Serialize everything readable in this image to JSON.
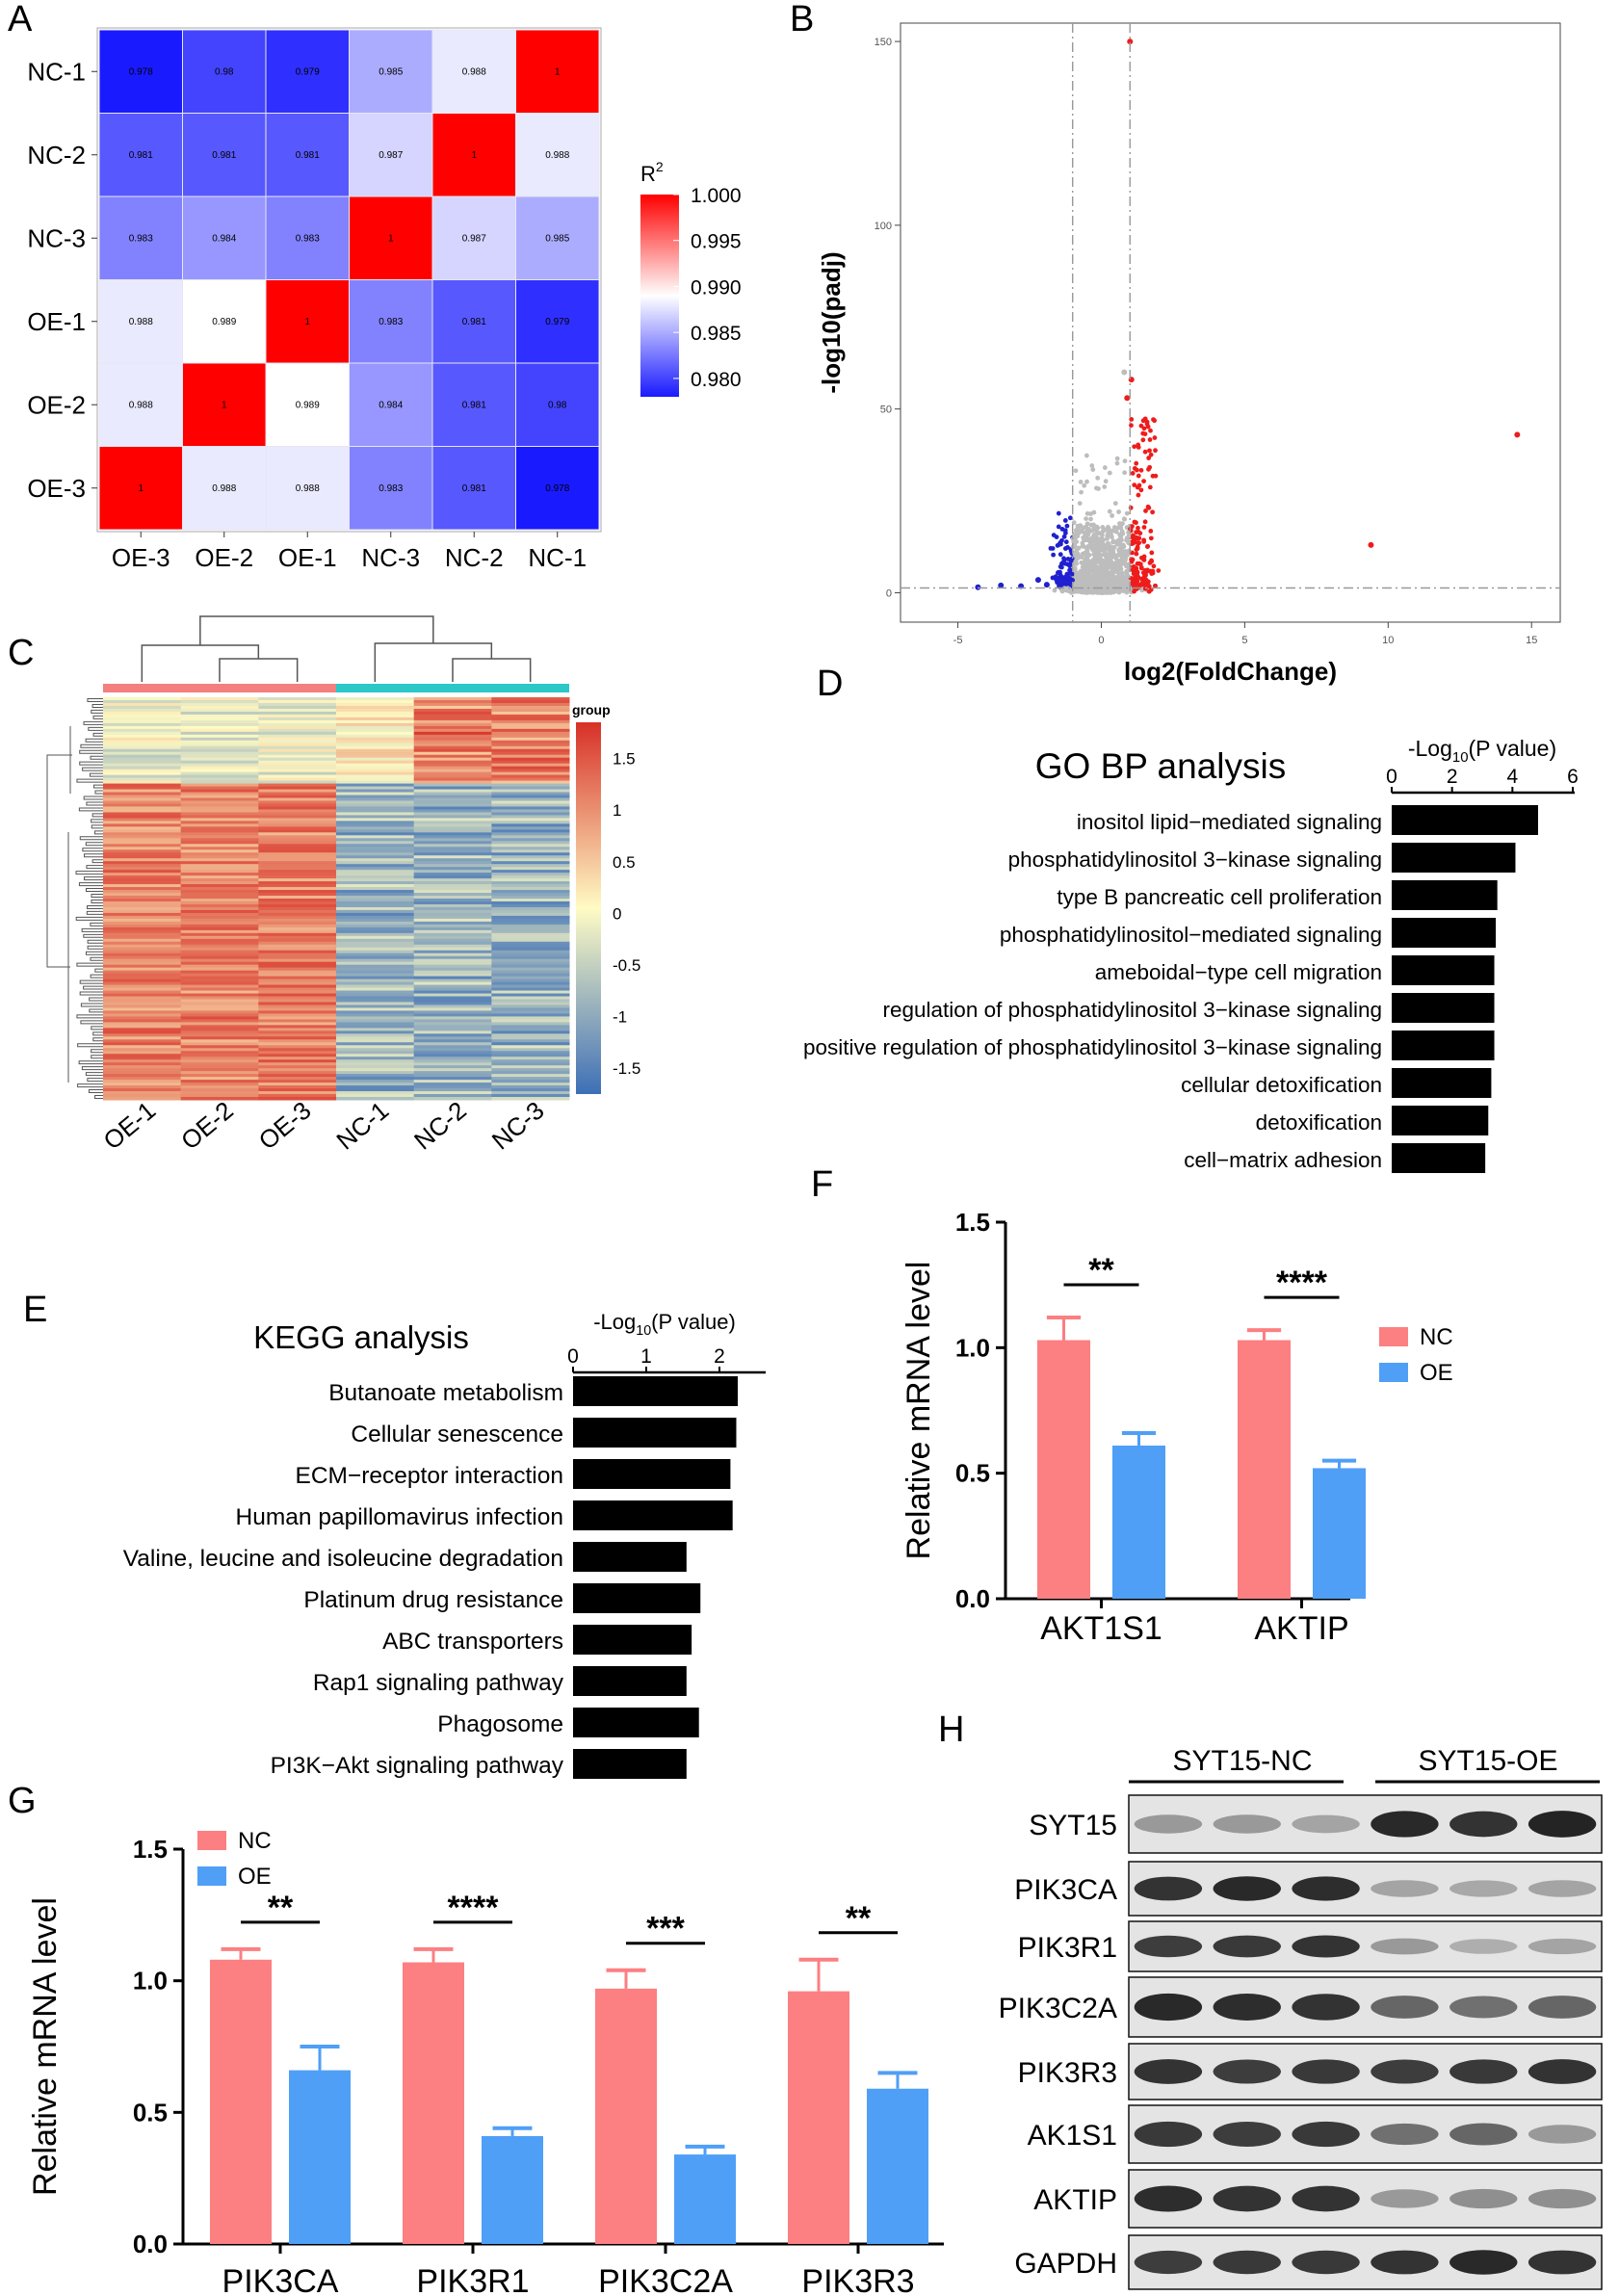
{
  "panel_labels": [
    "A",
    "B",
    "C",
    "D",
    "E",
    "F",
    "G",
    "H"
  ],
  "chart_data": [
    {
      "id": "A",
      "type": "heatmap",
      "title": "",
      "rows": [
        "NC-1",
        "NC-2",
        "NC-3",
        "OE-1",
        "OE-2",
        "OE-3"
      ],
      "cols": [
        "OE-3",
        "OE-2",
        "OE-1",
        "NC-3",
        "NC-2",
        "NC-1"
      ],
      "values": [
        [
          0.978,
          0.98,
          0.979,
          0.985,
          0.988,
          1
        ],
        [
          0.981,
          0.981,
          0.981,
          0.987,
          1,
          0.988
        ],
        [
          0.983,
          0.984,
          0.983,
          1,
          0.987,
          0.985
        ],
        [
          0.988,
          0.989,
          1,
          0.983,
          0.981,
          0.979
        ],
        [
          0.988,
          1,
          0.989,
          0.984,
          0.981,
          0.98
        ],
        [
          1,
          0.988,
          0.988,
          0.983,
          0.981,
          0.978
        ]
      ],
      "legend_title": "R",
      "legend_title_sup": "2",
      "legend_ticks": [
        "1.000",
        "0.995",
        "0.990",
        "0.985",
        "0.980"
      ],
      "legend_tick_values": [
        1.0,
        0.995,
        0.99,
        0.985,
        0.98
      ],
      "range": [
        0.978,
        1.0
      ],
      "colors": {
        "low": "#1a1aff",
        "mid": "#ffffff",
        "high": "#ff0000"
      }
    },
    {
      "id": "B",
      "type": "scatter",
      "title": "",
      "xlabel": "log2(FoldChange)",
      "ylabel": "-log10(padj)",
      "xlim": [
        -7,
        16
      ],
      "ylim": [
        -8,
        155
      ],
      "xticks": [
        -5,
        0,
        5,
        10,
        15
      ],
      "yticks": [
        0,
        50,
        100,
        150
      ],
      "threshold_x": [
        -1,
        1
      ],
      "threshold_y": 1.3,
      "highlight_points": [
        {
          "x": 1.0,
          "y": 150,
          "group": "up"
        },
        {
          "x": 14.5,
          "y": 43,
          "group": "up"
        },
        {
          "x": 9.4,
          "y": 13,
          "group": "up"
        },
        {
          "x": 1.05,
          "y": 58,
          "group": "up"
        },
        {
          "x": 0.9,
          "y": 53,
          "group": "up"
        },
        {
          "x": 0.8,
          "y": 60,
          "group": "grey"
        },
        {
          "x": -3.5,
          "y": 2,
          "group": "down"
        },
        {
          "x": -2.8,
          "y": 1.8,
          "group": "down"
        },
        {
          "x": -2.2,
          "y": 3.5,
          "group": "down"
        },
        {
          "x": -1.9,
          "y": 2.2,
          "group": "down"
        },
        {
          "x": -4.3,
          "y": 1.5,
          "group": "down"
        }
      ],
      "colors": {
        "up": "#ee1c1c",
        "down": "#2020d0",
        "grey": "#bdbdbd"
      }
    },
    {
      "id": "C",
      "type": "heatmap",
      "title": "",
      "cols": [
        "OE-1",
        "OE-2",
        "OE-3",
        "NC-1",
        "NC-2",
        "NC-3"
      ],
      "legend_title": "group",
      "legend_ticks": [
        "1.5",
        "1",
        "0.5",
        "0",
        "-0.5",
        "-1",
        "-1.5"
      ],
      "legend_tick_values": [
        1.5,
        1,
        0.5,
        0,
        -0.5,
        -1,
        -1.5
      ],
      "range": [
        -1.75,
        1.85
      ],
      "group_colors": [
        "#f47f7f",
        "#2cc8c8"
      ],
      "colors": {
        "low": "#3d6fb6",
        "mid": "#fffbc4",
        "high": "#d73027"
      }
    },
    {
      "id": "D",
      "type": "bar",
      "orientation": "horizontal",
      "title": "GO BP analysis",
      "axis_label": "-Log",
      "axis_label_sub": "10",
      "axis_label_suffix": "(P value)",
      "xticks": [
        0,
        2,
        4,
        6
      ],
      "xlim": [
        0,
        6
      ],
      "categories": [
        "inositol lipid−mediated signaling",
        "phosphatidylinositol 3−kinase signaling",
        "type B pancreatic cell proliferation",
        "phosphatidylinositol−mediated signaling",
        "ameboidal−type cell migration",
        "regulation of phosphatidylinositol 3−kinase signaling",
        "positive regulation of phosphatidylinositol 3−kinase signaling",
        "cellular detoxification",
        "detoxification",
        "cell−matrix adhesion"
      ],
      "values": [
        4.85,
        4.1,
        3.5,
        3.45,
        3.4,
        3.4,
        3.4,
        3.3,
        3.2,
        3.1
      ]
    },
    {
      "id": "E",
      "type": "bar",
      "orientation": "horizontal",
      "title": "KEGG analysis",
      "axis_label": "-Log",
      "axis_label_sub": "10",
      "axis_label_suffix": "(P value)",
      "xticks": [
        0,
        1,
        2
      ],
      "xlim": [
        0,
        2.5
      ],
      "categories": [
        "Butanoate metabolism",
        "Cellular senescence",
        "ECM−receptor interaction",
        "Human papillomavirus infection",
        "Valine, leucine and isoleucine degradation",
        "Platinum drug resistance",
        "ABC transporters",
        "Rap1 signaling pathway",
        "Phagosome",
        "PI3K−Akt signaling pathway"
      ],
      "values": [
        2.25,
        2.23,
        2.15,
        2.18,
        1.55,
        1.74,
        1.62,
        1.55,
        1.72,
        1.55
      ]
    },
    {
      "id": "F",
      "type": "bar",
      "title": "",
      "ylabel": "Relative mRNA level",
      "ylim": [
        0,
        1.5
      ],
      "yticks": [
        0.0,
        0.5,
        1.0,
        1.5
      ],
      "ytick_labels": [
        "0.0",
        "0.5",
        "1.0",
        "1.5"
      ],
      "categories": [
        "AKT1S1",
        "AKTIP"
      ],
      "series": [
        {
          "name": "NC",
          "values": [
            1.03,
            1.03
          ],
          "errors": [
            0.09,
            0.04
          ],
          "color": "#fc7f82"
        },
        {
          "name": "OE",
          "values": [
            0.61,
            0.52
          ],
          "errors": [
            0.05,
            0.03
          ],
          "color": "#4f9ff7"
        }
      ],
      "significance": [
        "**",
        "****"
      ]
    },
    {
      "id": "G",
      "type": "bar",
      "title": "",
      "ylabel": "Relative mRNA level",
      "ylim": [
        0,
        1.5
      ],
      "yticks": [
        0.0,
        0.5,
        1.0,
        1.5
      ],
      "ytick_labels": [
        "0.0",
        "0.5",
        "1.0",
        "1.5"
      ],
      "categories": [
        "PIK3CA",
        "PIK3R1",
        "PIK3C2A",
        "PIK3R3"
      ],
      "series": [
        {
          "name": "NC",
          "values": [
            1.08,
            1.07,
            0.97,
            0.96
          ],
          "errors": [
            0.04,
            0.05,
            0.07,
            0.12
          ],
          "color": "#fc7f82"
        },
        {
          "name": "OE",
          "values": [
            0.66,
            0.41,
            0.34,
            0.59
          ],
          "errors": [
            0.09,
            0.03,
            0.03,
            0.06
          ],
          "color": "#4f9ff7"
        }
      ],
      "significance": [
        "**",
        "****",
        "***",
        "**"
      ]
    }
  ],
  "western_blot": {
    "groups": [
      "SYT15-NC",
      "SYT15-OE"
    ],
    "rows": [
      {
        "label": "SYT15",
        "intensity": [
          0.35,
          0.35,
          0.3,
          0.9,
          0.85,
          0.92
        ]
      },
      {
        "label": "PIK3CA",
        "intensity": [
          0.85,
          0.9,
          0.88,
          0.3,
          0.28,
          0.3
        ]
      },
      {
        "label": "PIK3R1",
        "intensity": [
          0.8,
          0.82,
          0.85,
          0.35,
          0.25,
          0.3
        ]
      },
      {
        "label": "PIK3C2A",
        "intensity": [
          0.9,
          0.88,
          0.85,
          0.6,
          0.55,
          0.6
        ]
      },
      {
        "label": "PIK3R3",
        "intensity": [
          0.85,
          0.8,
          0.82,
          0.8,
          0.82,
          0.85
        ]
      },
      {
        "label": "AK1S1",
        "intensity": [
          0.82,
          0.8,
          0.82,
          0.55,
          0.6,
          0.35
        ]
      },
      {
        "label": "AKTIP",
        "intensity": [
          0.88,
          0.85,
          0.85,
          0.35,
          0.4,
          0.4
        ]
      },
      {
        "label": "GAPDH",
        "intensity": [
          0.8,
          0.82,
          0.82,
          0.85,
          0.9,
          0.85
        ]
      }
    ]
  }
}
